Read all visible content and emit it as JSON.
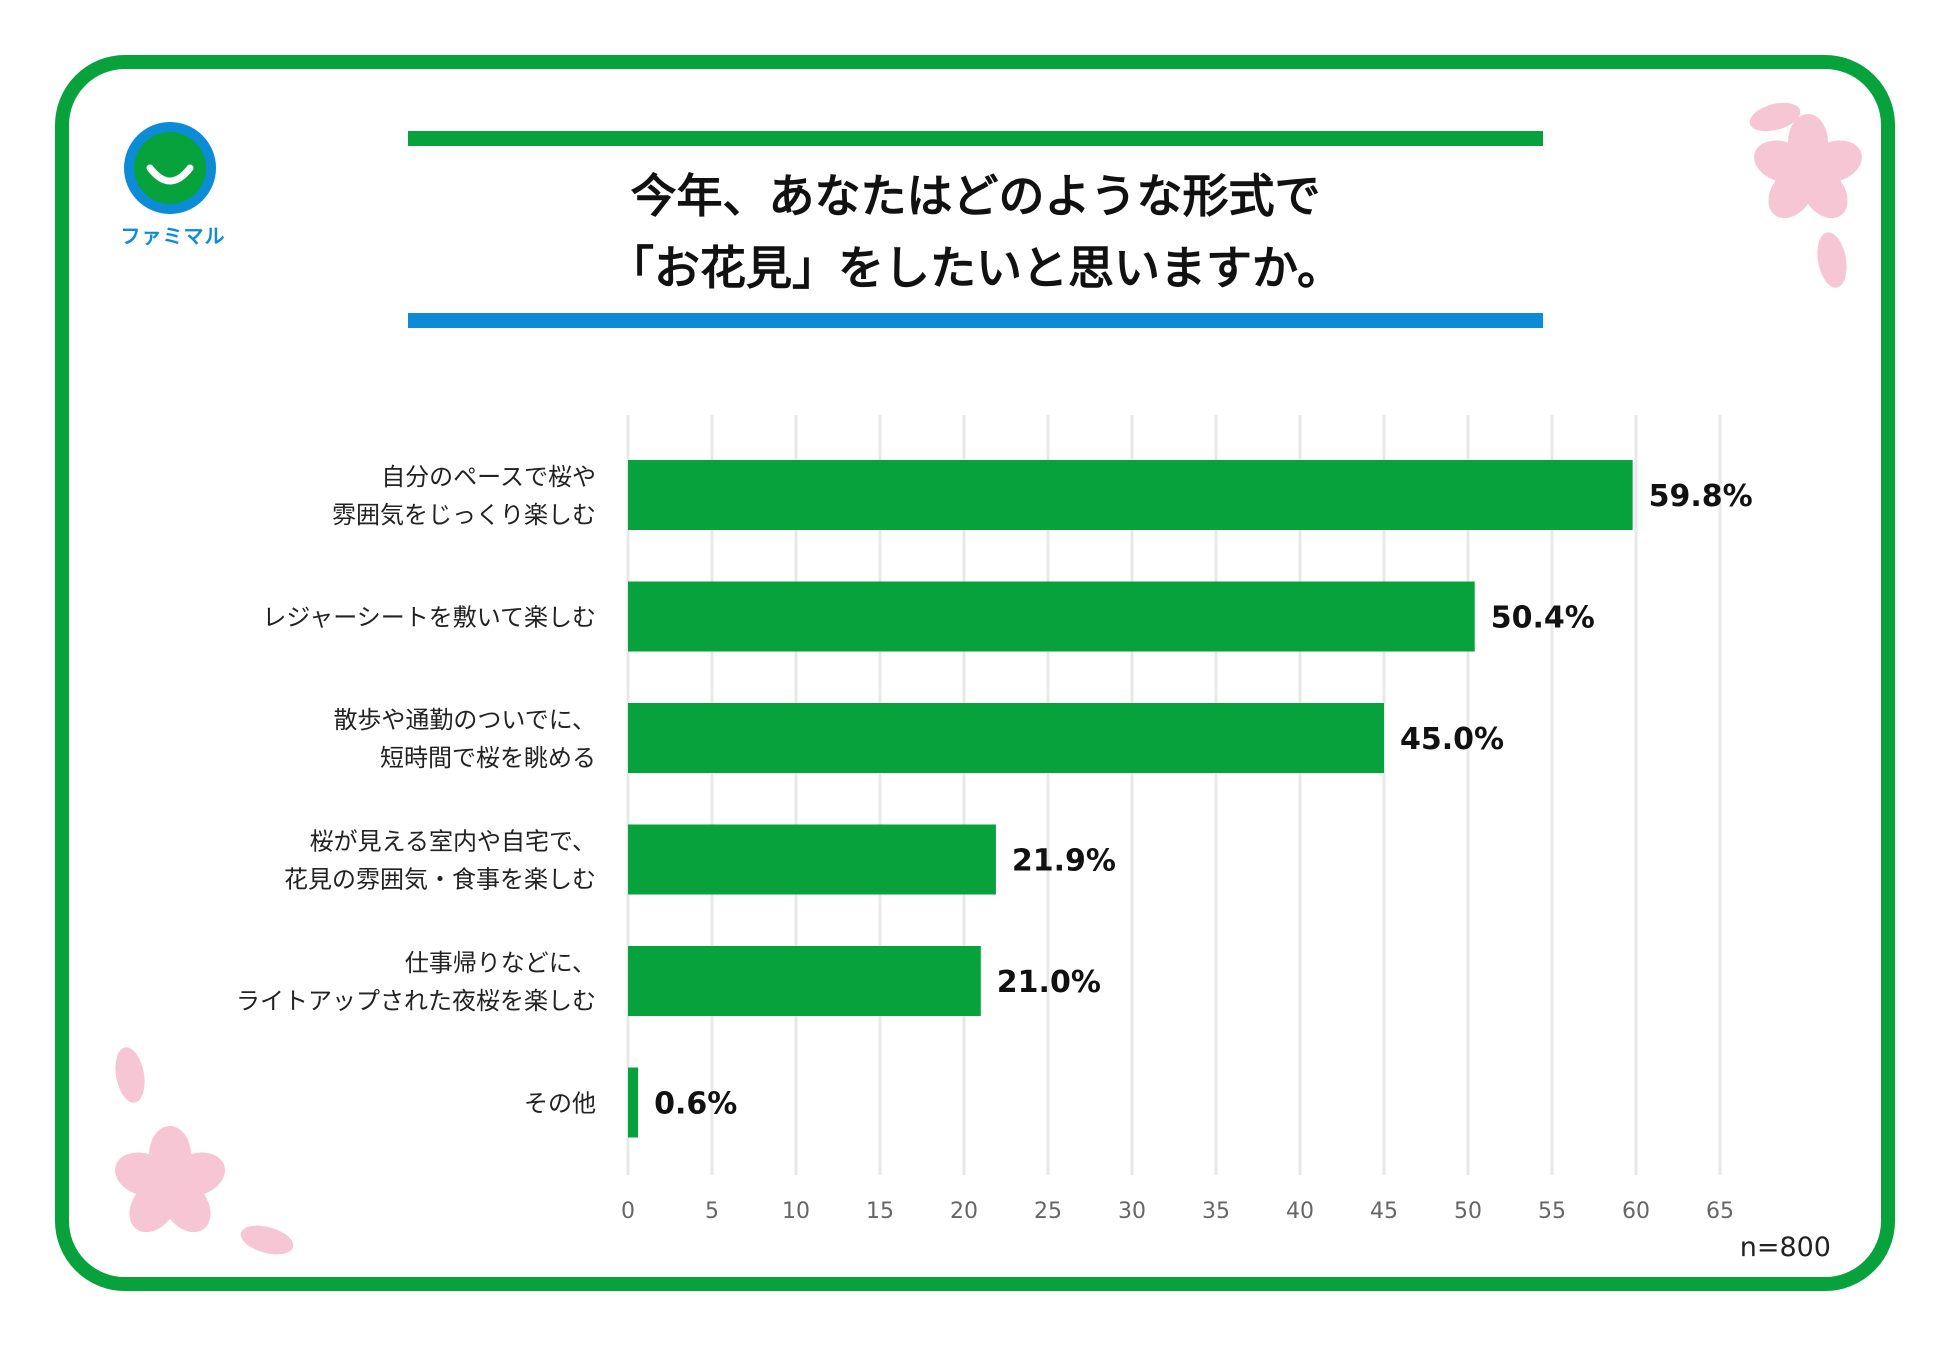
{
  "title_lines": [
    "今年、あなたはどのような形式で",
    "「お花見」をしたいと思いますか。"
  ],
  "logo_text": "ファミマル",
  "sample_size": "n=800",
  "colors": {
    "bar": "#07a23c",
    "frame": "#07a23c",
    "accent_blue": "#0c8bd6",
    "grid": "#e8e8e8",
    "blossom": "#f7c6d4"
  },
  "icons": [
    "famima-smile-logo-icon",
    "cherry-blossom-icon"
  ],
  "chart_data": {
    "type": "bar",
    "orientation": "horizontal",
    "categories": [
      [
        "自分のペースで桜や",
        "雰囲気をじっくり楽しむ"
      ],
      [
        "レジャーシートを敷いて楽しむ"
      ],
      [
        "散歩や通勤のついでに、",
        "短時間で桜を眺める"
      ],
      [
        "桜が見える室内や自宅で、",
        "花見の雰囲気・食事を楽しむ"
      ],
      [
        "仕事帰りなどに、",
        "ライトアップされた夜桜を楽しむ"
      ],
      [
        "その他"
      ]
    ],
    "values": [
      59.8,
      50.4,
      45.0,
      21.9,
      21.0,
      0.6
    ],
    "value_labels": [
      "59.8%",
      "50.4%",
      "45.0%",
      "21.9%",
      "21.0%",
      "0.6%"
    ],
    "xlim": [
      0,
      65
    ],
    "xticks": [
      "0",
      "5",
      "10",
      "15",
      "20",
      "25",
      "30",
      "35",
      "40",
      "45",
      "50",
      "55",
      "60",
      "65"
    ],
    "grid": true,
    "title": "",
    "xlabel": "",
    "ylabel": ""
  }
}
